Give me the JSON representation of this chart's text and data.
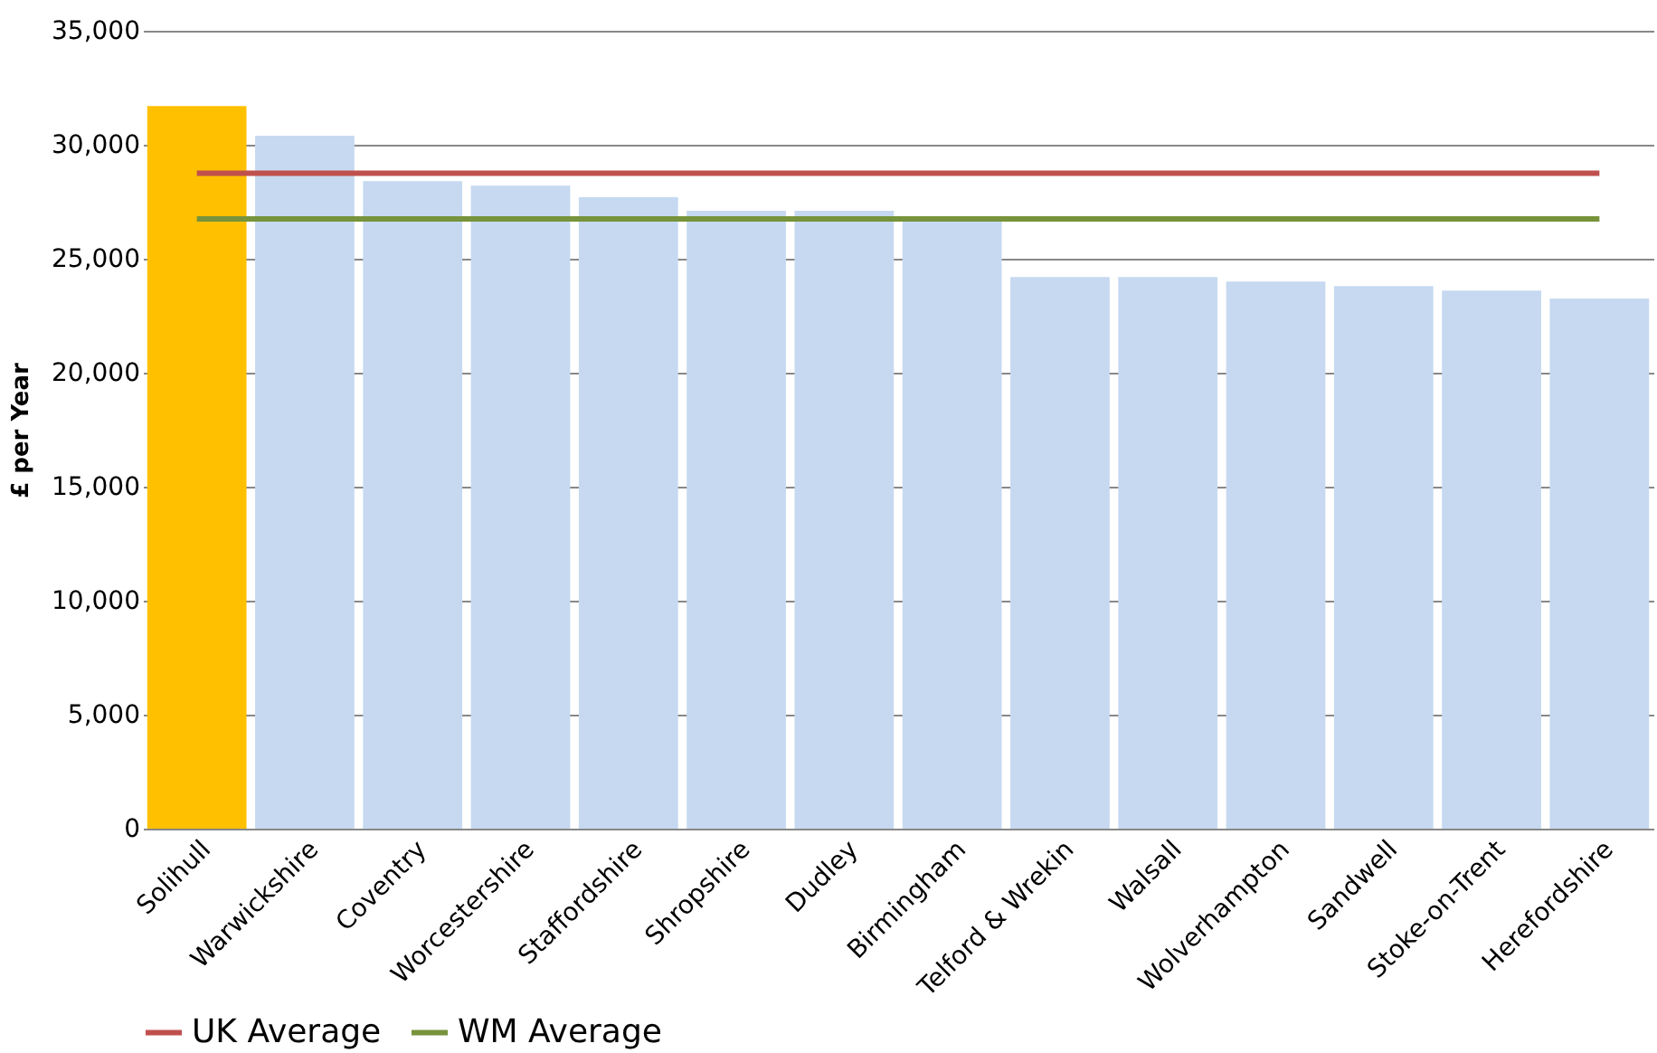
{
  "chart_data": {
    "type": "bar",
    "ylabel": "£ per Year",
    "categories": [
      "Solihull",
      "Warwickshire",
      "Coventry",
      "Worcestershire",
      "Staffordshire",
      "Shropshire",
      "Dudley",
      "Birmingham",
      "Telford & Wrekin",
      "Walsall",
      "Wolverhampton",
      "Sandwell",
      "Stoke-on-Trent",
      "Herefordshire"
    ],
    "series": [
      {
        "values": [
          31700,
          30400,
          28400,
          28200,
          27700,
          27100,
          27100,
          26750,
          24200,
          24200,
          24000,
          23800,
          23600,
          23250
        ],
        "colors": [
          "#ffc000",
          "#c6d9f1",
          "#c6d9f1",
          "#c6d9f1",
          "#c6d9f1",
          "#c6d9f1",
          "#c6d9f1",
          "#c6d9f1",
          "#c6d9f1",
          "#c6d9f1",
          "#c6d9f1",
          "#c6d9f1",
          "#c6d9f1",
          "#c6d9f1"
        ]
      },
      {
        "type": "line",
        "name": "UK Average",
        "color": "#c0504d",
        "values": [
          28750,
          28750,
          28750,
          28750,
          28750,
          28750,
          28750,
          28750,
          28750,
          28750,
          28750,
          28750,
          28750,
          28750
        ]
      },
      {
        "type": "line",
        "name": "WM Average",
        "color": "#77933c",
        "values": [
          26750,
          26750,
          26750,
          26750,
          26750,
          26750,
          26750,
          26750,
          26750,
          26750,
          26750,
          26750,
          26750,
          26750
        ]
      }
    ],
    "ylim": [
      0,
      35000
    ],
    "yticks": [
      0,
      {
        "value": 5000,
        "label": "5,000"
      },
      {
        "value": 10000,
        "label": "10,000"
      },
      {
        "value": 15000,
        "label": "15,000"
      },
      {
        "value": 20000,
        "label": "20,000"
      },
      {
        "value": 25000,
        "label": "25,000"
      },
      {
        "value": 30000,
        "label": "30,000"
      },
      {
        "value": 35000,
        "label": "35,000"
      }
    ],
    "grid": "y",
    "legend": "bottom",
    "marker": "none",
    "line_style": "solid"
  }
}
